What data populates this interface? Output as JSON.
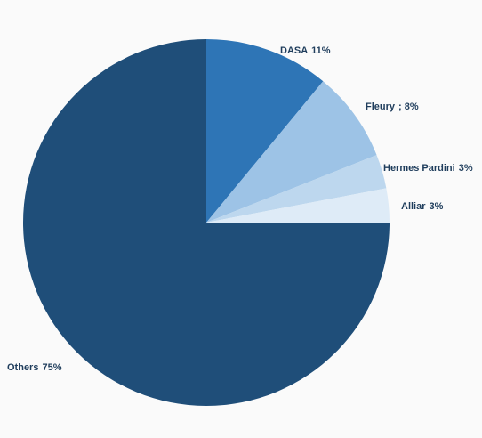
{
  "chart_data": {
    "type": "pie",
    "categories": [
      "DASA",
      "Fleury",
      "Hermes Pardini",
      "Alliar",
      "Others"
    ],
    "values": [
      11,
      8,
      3,
      3,
      75
    ],
    "value_labels": [
      "11%",
      "; 8%",
      "3%",
      "3%",
      "75%"
    ],
    "colors": [
      "#2e75b6",
      "#9dc3e6",
      "#bdd7ee",
      "#deebf7",
      "#1f4e79"
    ]
  }
}
